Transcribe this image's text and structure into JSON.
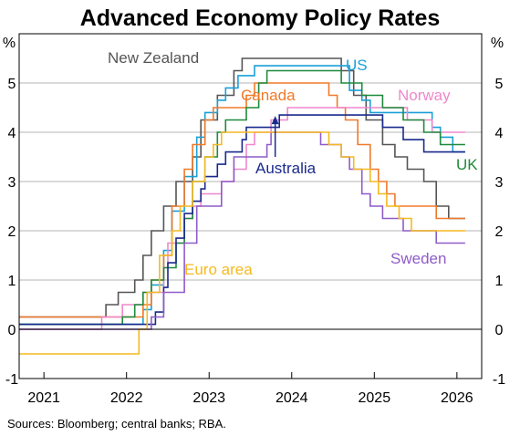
{
  "chart_data": {
    "type": "line",
    "title": "Advanced Economy Policy Rates",
    "y_unit": "%",
    "ylim": [
      -1,
      6
    ],
    "y_ticks": [
      -1,
      0,
      1,
      2,
      3,
      4,
      5
    ],
    "xlim": [
      2020.7,
      2026.3
    ],
    "x_ticks": [
      {
        "value": 2021,
        "label": "2021"
      },
      {
        "value": 2022,
        "label": "2022"
      },
      {
        "value": 2023,
        "label": "2023"
      },
      {
        "value": 2024,
        "label": "2024"
      },
      {
        "value": 2025,
        "label": "2025"
      },
      {
        "value": 2026,
        "label": "2026"
      }
    ],
    "grid": true,
    "source": "Sources: Bloomberg; central banks; RBA.",
    "annotation": {
      "label": "Australia",
      "x": 2023.8,
      "y": 4.35
    },
    "series": [
      {
        "name": "New Zealand",
        "color": "#555555",
        "points": [
          [
            2020.7,
            0.25
          ],
          [
            2021.75,
            0.5
          ],
          [
            2021.9,
            0.75
          ],
          [
            2022.1,
            1.0
          ],
          [
            2022.2,
            1.5
          ],
          [
            2022.3,
            2.0
          ],
          [
            2022.45,
            2.5
          ],
          [
            2022.6,
            3.0
          ],
          [
            2022.8,
            3.5
          ],
          [
            2022.9,
            4.25
          ],
          [
            2023.1,
            4.75
          ],
          [
            2023.3,
            5.25
          ],
          [
            2023.4,
            5.5
          ],
          [
            2024.6,
            5.25
          ],
          [
            2024.75,
            4.75
          ],
          [
            2024.9,
            4.25
          ],
          [
            2025.1,
            3.75
          ],
          [
            2025.25,
            3.5
          ],
          [
            2025.4,
            3.25
          ],
          [
            2025.6,
            3.0
          ],
          [
            2025.75,
            2.5
          ],
          [
            2025.9,
            2.25
          ],
          [
            2026.1,
            2.25
          ]
        ]
      },
      {
        "name": "US",
        "color": "#1aa0d8",
        "points": [
          [
            2020.7,
            0.1
          ],
          [
            2022.2,
            0.4
          ],
          [
            2022.3,
            0.9
          ],
          [
            2022.45,
            1.6
          ],
          [
            2022.55,
            2.4
          ],
          [
            2022.7,
            3.1
          ],
          [
            2022.85,
            3.9
          ],
          [
            2022.95,
            4.4
          ],
          [
            2023.1,
            4.65
          ],
          [
            2023.2,
            4.9
          ],
          [
            2023.35,
            5.15
          ],
          [
            2023.55,
            5.35
          ],
          [
            2024.7,
            4.85
          ],
          [
            2024.85,
            4.65
          ],
          [
            2024.95,
            4.4
          ],
          [
            2025.7,
            4.1
          ],
          [
            2025.8,
            3.9
          ],
          [
            2025.95,
            3.6
          ],
          [
            2026.1,
            3.6
          ]
        ]
      },
      {
        "name": "Canada",
        "color": "#f07a2a",
        "points": [
          [
            2020.7,
            0.25
          ],
          [
            2022.2,
            0.5
          ],
          [
            2022.3,
            1.0
          ],
          [
            2022.45,
            1.5
          ],
          [
            2022.55,
            2.5
          ],
          [
            2022.7,
            3.25
          ],
          [
            2022.8,
            3.75
          ],
          [
            2022.95,
            4.25
          ],
          [
            2023.05,
            4.5
          ],
          [
            2023.45,
            4.75
          ],
          [
            2023.55,
            5.0
          ],
          [
            2024.45,
            4.75
          ],
          [
            2024.55,
            4.5
          ],
          [
            2024.65,
            4.25
          ],
          [
            2024.8,
            3.75
          ],
          [
            2024.95,
            3.25
          ],
          [
            2025.05,
            3.0
          ],
          [
            2025.15,
            2.75
          ],
          [
            2025.25,
            2.5
          ],
          [
            2025.75,
            2.25
          ],
          [
            2026.1,
            2.25
          ]
        ]
      },
      {
        "name": "Norway",
        "color": "#ee88cc",
        "points": [
          [
            2020.7,
            0.0
          ],
          [
            2021.7,
            0.25
          ],
          [
            2021.95,
            0.5
          ],
          [
            2022.2,
            0.75
          ],
          [
            2022.45,
            1.25
          ],
          [
            2022.5,
            1.75
          ],
          [
            2022.7,
            2.25
          ],
          [
            2022.8,
            2.5
          ],
          [
            2022.9,
            2.75
          ],
          [
            2023.15,
            3.0
          ],
          [
            2023.3,
            3.25
          ],
          [
            2023.45,
            3.75
          ],
          [
            2023.55,
            4.0
          ],
          [
            2023.75,
            4.25
          ],
          [
            2023.95,
            4.5
          ],
          [
            2025.4,
            4.25
          ],
          [
            2025.7,
            4.0
          ],
          [
            2026.1,
            4.0
          ]
        ]
      },
      {
        "name": "UK",
        "color": "#1e8a3c",
        "points": [
          [
            2020.7,
            0.1
          ],
          [
            2021.95,
            0.25
          ],
          [
            2022.1,
            0.5
          ],
          [
            2022.2,
            0.75
          ],
          [
            2022.3,
            1.0
          ],
          [
            2022.45,
            1.25
          ],
          [
            2022.6,
            1.75
          ],
          [
            2022.7,
            2.25
          ],
          [
            2022.8,
            3.0
          ],
          [
            2022.95,
            3.5
          ],
          [
            2023.1,
            4.0
          ],
          [
            2023.2,
            4.25
          ],
          [
            2023.45,
            4.5
          ],
          [
            2023.6,
            5.0
          ],
          [
            2023.7,
            5.25
          ],
          [
            2024.6,
            5.0
          ],
          [
            2024.85,
            4.75
          ],
          [
            2025.1,
            4.5
          ],
          [
            2025.35,
            4.25
          ],
          [
            2025.6,
            4.0
          ],
          [
            2025.8,
            3.75
          ],
          [
            2026.1,
            3.75
          ]
        ]
      },
      {
        "name": "Australia",
        "color": "#1a2a8c",
        "points": [
          [
            2020.7,
            0.1
          ],
          [
            2022.35,
            0.35
          ],
          [
            2022.45,
            0.85
          ],
          [
            2022.5,
            1.35
          ],
          [
            2022.6,
            1.85
          ],
          [
            2022.7,
            2.35
          ],
          [
            2022.8,
            2.6
          ],
          [
            2022.9,
            2.85
          ],
          [
            2022.95,
            3.1
          ],
          [
            2023.1,
            3.35
          ],
          [
            2023.2,
            3.6
          ],
          [
            2023.4,
            3.85
          ],
          [
            2023.45,
            4.1
          ],
          [
            2023.85,
            4.35
          ],
          [
            2025.1,
            4.1
          ],
          [
            2025.35,
            3.85
          ],
          [
            2025.6,
            3.6
          ],
          [
            2026.1,
            3.6
          ]
        ]
      },
      {
        "name": "Sweden",
        "color": "#8e5cc8",
        "points": [
          [
            2020.7,
            0.0
          ],
          [
            2022.3,
            0.25
          ],
          [
            2022.45,
            0.75
          ],
          [
            2022.7,
            1.75
          ],
          [
            2022.85,
            2.5
          ],
          [
            2023.15,
            3.0
          ],
          [
            2023.3,
            3.5
          ],
          [
            2023.7,
            3.75
          ],
          [
            2023.75,
            4.0
          ],
          [
            2024.35,
            3.75
          ],
          [
            2024.6,
            3.5
          ],
          [
            2024.7,
            3.25
          ],
          [
            2024.85,
            2.75
          ],
          [
            2024.95,
            2.5
          ],
          [
            2025.1,
            2.25
          ],
          [
            2025.35,
            2.0
          ],
          [
            2025.75,
            1.75
          ],
          [
            2026.1,
            1.75
          ]
        ]
      },
      {
        "name": "Euro area",
        "color": "#f5b921",
        "points": [
          [
            2020.7,
            -0.5
          ],
          [
            2022.05,
            -0.5
          ],
          [
            2022.15,
            0.0
          ],
          [
            2022.25,
            0.75
          ],
          [
            2022.4,
            1.5
          ],
          [
            2022.55,
            2.0
          ],
          [
            2022.65,
            2.5
          ],
          [
            2022.8,
            3.0
          ],
          [
            2022.95,
            3.5
          ],
          [
            2023.05,
            3.75
          ],
          [
            2023.15,
            4.0
          ],
          [
            2023.4,
            4.0
          ],
          [
            2024.45,
            3.75
          ],
          [
            2024.6,
            3.5
          ],
          [
            2024.75,
            3.25
          ],
          [
            2024.95,
            3.0
          ],
          [
            2025.05,
            2.75
          ],
          [
            2025.15,
            2.5
          ],
          [
            2025.3,
            2.25
          ],
          [
            2025.45,
            2.0
          ],
          [
            2026.1,
            2.0
          ]
        ]
      }
    ]
  }
}
